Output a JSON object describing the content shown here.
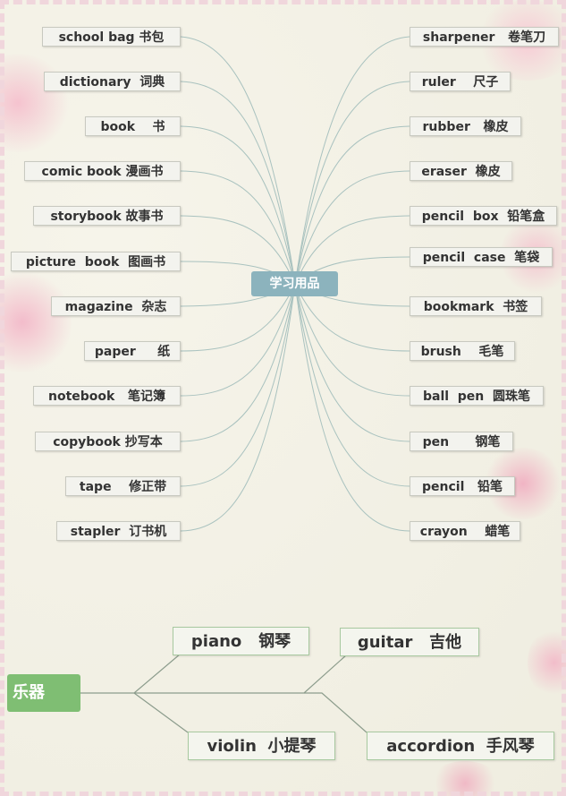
{
  "center_topic": "学习用品",
  "left_items": [
    {
      "label": "school bag 书包"
    },
    {
      "label": "dictionary  词典"
    },
    {
      "label": "book    书"
    },
    {
      "label": "comic book 漫画书"
    },
    {
      "label": "storybook 故事书"
    },
    {
      "label": "picture  book  图画书"
    },
    {
      "label": "magazine  杂志"
    },
    {
      "label": "paper     纸"
    },
    {
      "label": "notebook   笔记簿"
    },
    {
      "label": "copybook 抄写本"
    },
    {
      "label": "tape    修正带"
    },
    {
      "label": "stapler  订书机"
    }
  ],
  "right_items": [
    {
      "label": "sharpener   卷笔刀"
    },
    {
      "label": "ruler    尺子"
    },
    {
      "label": "rubber   橡皮"
    },
    {
      "label": "eraser  橡皮"
    },
    {
      "label": "pencil  box  铅笔盒"
    },
    {
      "label": "pencil  case  笔袋"
    },
    {
      "label": "bookmark  书签"
    },
    {
      "label": "brush    毛笔"
    },
    {
      "label": "ball  pen  圆珠笔"
    },
    {
      "label": "pen      钢笔"
    },
    {
      "label": "pencil   铅笔"
    },
    {
      "label": "crayon    蜡笔"
    }
  ],
  "music_topic": "乐器",
  "instruments": [
    {
      "label": "piano   钢琴"
    },
    {
      "label": "guitar   吉他"
    },
    {
      "label": "violin  小提琴"
    },
    {
      "label": "accordion  手风琴"
    }
  ],
  "colors": {
    "center_box": "#8cb3bd",
    "music_box": "#7fbe73",
    "connector": "#a9c2bf",
    "blossom": "#f2b9c8"
  }
}
